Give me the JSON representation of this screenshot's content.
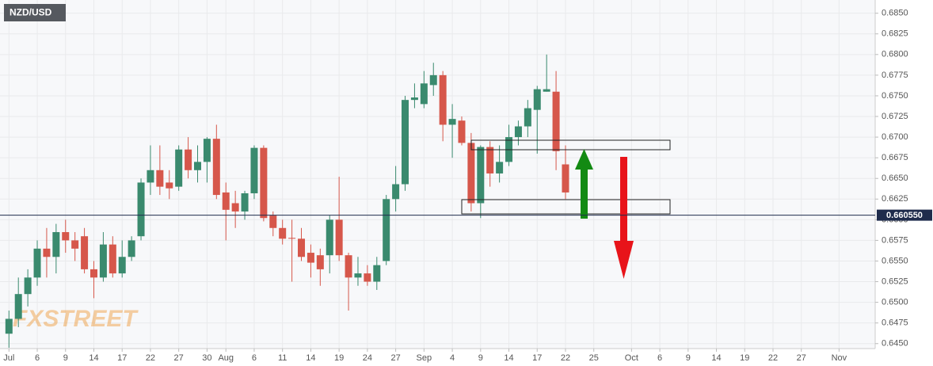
{
  "chart_data": {
    "type": "candlestick",
    "title": "NZD/USD",
    "watermark": "FXSTREET",
    "categories": [
      "Jul",
      null,
      null,
      "6",
      null,
      null,
      "9",
      null,
      null,
      "14",
      null,
      null,
      "17",
      null,
      null,
      "22",
      null,
      null,
      "27",
      null,
      null,
      "30",
      null,
      "Aug",
      null,
      null,
      "6",
      null,
      null,
      "11",
      null,
      null,
      "14",
      null,
      null,
      "19",
      null,
      null,
      "24",
      null,
      null,
      "27",
      null,
      null,
      "Sep",
      null,
      null,
      "4",
      null,
      null,
      "9",
      null,
      null,
      "14",
      null,
      null,
      "17",
      null,
      null,
      "22",
      null,
      null,
      "25",
      null,
      null,
      null,
      "Oct",
      null,
      null,
      "6",
      null,
      null,
      "9",
      null,
      null,
      "14",
      null,
      null,
      "19",
      null,
      null,
      "22",
      null,
      null,
      "27",
      null,
      null,
      null,
      "Nov",
      null,
      null,
      null
    ],
    "open": [
      0.6462,
      0.648,
      0.651,
      0.653,
      0.6565,
      0.6555,
      0.6585,
      0.6575,
      0.658,
      0.654,
      0.653,
      0.657,
      0.6535,
      0.6555,
      0.658,
      0.6645,
      0.666,
      0.6645,
      0.664,
      0.6685,
      0.666,
      0.667,
      0.6698,
      0.6633,
      0.662,
      0.661,
      0.6632,
      0.6687,
      0.6605,
      0.659,
      0.6578,
      0.6577,
      0.656,
      0.6557,
      0.6557,
      0.66,
      0.6557,
      0.653,
      0.6535,
      0.6525,
      0.655,
      0.6625,
      0.6643,
      0.6745,
      0.674,
      0.6763,
      0.6775,
      0.6715,
      0.672,
      0.6693,
      0.662,
      0.6688,
      0.6656,
      0.667,
      0.67,
      0.6713,
      0.6733,
      0.6755,
      0.6755,
      0.6667,
      null,
      null,
      null,
      null,
      null,
      null,
      null,
      null,
      null,
      null,
      null,
      null,
      null,
      null,
      null,
      null,
      null,
      null,
      null,
      null,
      null,
      null,
      null,
      null,
      null,
      null,
      null,
      null,
      null,
      null,
      null,
      null
    ],
    "high": [
      0.649,
      0.653,
      0.654,
      0.6575,
      0.659,
      0.6595,
      0.66,
      0.6585,
      0.659,
      0.655,
      0.6585,
      0.658,
      0.6575,
      0.658,
      0.665,
      0.669,
      0.669,
      0.666,
      0.669,
      0.67,
      0.669,
      0.67,
      0.6715,
      0.6645,
      0.6635,
      0.6635,
      0.669,
      0.669,
      0.661,
      0.66,
      0.66,
      0.659,
      0.657,
      0.6565,
      0.6605,
      0.6652,
      0.656,
      0.6555,
      0.6545,
      0.6555,
      0.663,
      0.6665,
      0.675,
      0.6765,
      0.678,
      0.679,
      0.678,
      0.674,
      0.6725,
      0.6705,
      0.669,
      0.6695,
      0.669,
      0.6715,
      0.672,
      0.6745,
      0.6762,
      0.68,
      0.678,
      0.669,
      null,
      null,
      null,
      null,
      null,
      null,
      null,
      null,
      null,
      null,
      null,
      null,
      null,
      null,
      null,
      null,
      null,
      null,
      null,
      null,
      null,
      null,
      null,
      null,
      null,
      null,
      null,
      null,
      null,
      null,
      null,
      null
    ],
    "low": [
      0.6445,
      0.647,
      0.6495,
      0.652,
      0.653,
      0.6535,
      0.656,
      0.655,
      0.6535,
      0.6505,
      0.6525,
      0.653,
      0.653,
      0.655,
      0.6575,
      0.663,
      0.663,
      0.6625,
      0.6635,
      0.665,
      0.6645,
      0.6645,
      0.6625,
      0.6575,
      0.659,
      0.66,
      0.6625,
      0.6598,
      0.658,
      0.657,
      0.6525,
      0.655,
      0.653,
      0.652,
      0.6535,
      0.655,
      0.649,
      0.652,
      0.652,
      0.6515,
      0.6545,
      0.661,
      0.6635,
      0.6735,
      0.6735,
      0.675,
      0.6695,
      0.6675,
      0.669,
      0.661,
      0.6602,
      0.664,
      0.6645,
      0.6665,
      0.669,
      0.67,
      0.668,
      0.6755,
      0.666,
      0.6625,
      null,
      null,
      null,
      null,
      null,
      null,
      null,
      null,
      null,
      null,
      null,
      null,
      null,
      null,
      null,
      null,
      null,
      null,
      null,
      null,
      null,
      null,
      null,
      null,
      null,
      null,
      null,
      null,
      null,
      null,
      null,
      null
    ],
    "close": [
      0.648,
      0.651,
      0.653,
      0.6565,
      0.6555,
      0.6585,
      0.6575,
      0.6565,
      0.654,
      0.653,
      0.657,
      0.6535,
      0.6555,
      0.6575,
      0.6645,
      0.666,
      0.664,
      0.6638,
      0.6685,
      0.666,
      0.667,
      0.6698,
      0.663,
      0.6612,
      0.661,
      0.6632,
      0.6687,
      0.6602,
      0.659,
      0.6577,
      0.6577,
      0.6555,
      0.6548,
      0.654,
      0.66,
      0.6557,
      0.653,
      0.6535,
      0.6525,
      0.6545,
      0.6625,
      0.6643,
      0.6745,
      0.6748,
      0.6765,
      0.6775,
      0.6715,
      0.6722,
      0.6693,
      0.662,
      0.6688,
      0.6656,
      0.667,
      0.67,
      0.6713,
      0.6735,
      0.6758,
      0.6758,
      0.6683,
      0.6633,
      null,
      null,
      null,
      null,
      null,
      null,
      null,
      null,
      null,
      null,
      null,
      null,
      null,
      null,
      null,
      null,
      null,
      null,
      null,
      null,
      null,
      null,
      null,
      null,
      null,
      null,
      null,
      null,
      null,
      null,
      null,
      null
    ],
    "up_color": "#3a8a6e",
    "down_color": "#d6574b",
    "ylim": [
      0.6444,
      0.6866
    ],
    "yticks": [
      {
        "value": 0.645,
        "label": "0.6450"
      },
      {
        "value": 0.6475,
        "label": "0.6475"
      },
      {
        "value": 0.65,
        "label": "0.6500"
      },
      {
        "value": 0.6525,
        "label": "0.6525"
      },
      {
        "value": 0.655,
        "label": "0.6550"
      },
      {
        "value": 0.6575,
        "label": "0.6575"
      },
      {
        "value": 0.66,
        "label": "0.6600"
      },
      {
        "value": 0.6625,
        "label": "0.6625"
      },
      {
        "value": 0.665,
        "label": "0.6650"
      },
      {
        "value": 0.6675,
        "label": "0.6675"
      },
      {
        "value": 0.67,
        "label": "0.6700"
      },
      {
        "value": 0.6725,
        "label": "0.6725"
      },
      {
        "value": 0.675,
        "label": "0.6750"
      },
      {
        "value": 0.6775,
        "label": "0.6775"
      },
      {
        "value": 0.68,
        "label": "0.6800"
      },
      {
        "value": 0.6825,
        "label": "0.6825"
      },
      {
        "value": 0.685,
        "label": "0.6850"
      }
    ],
    "last_price": {
      "value": 0.66055,
      "label": "0.660550"
    },
    "last_price_color": "#1f2c4c",
    "grid": true
  }
}
